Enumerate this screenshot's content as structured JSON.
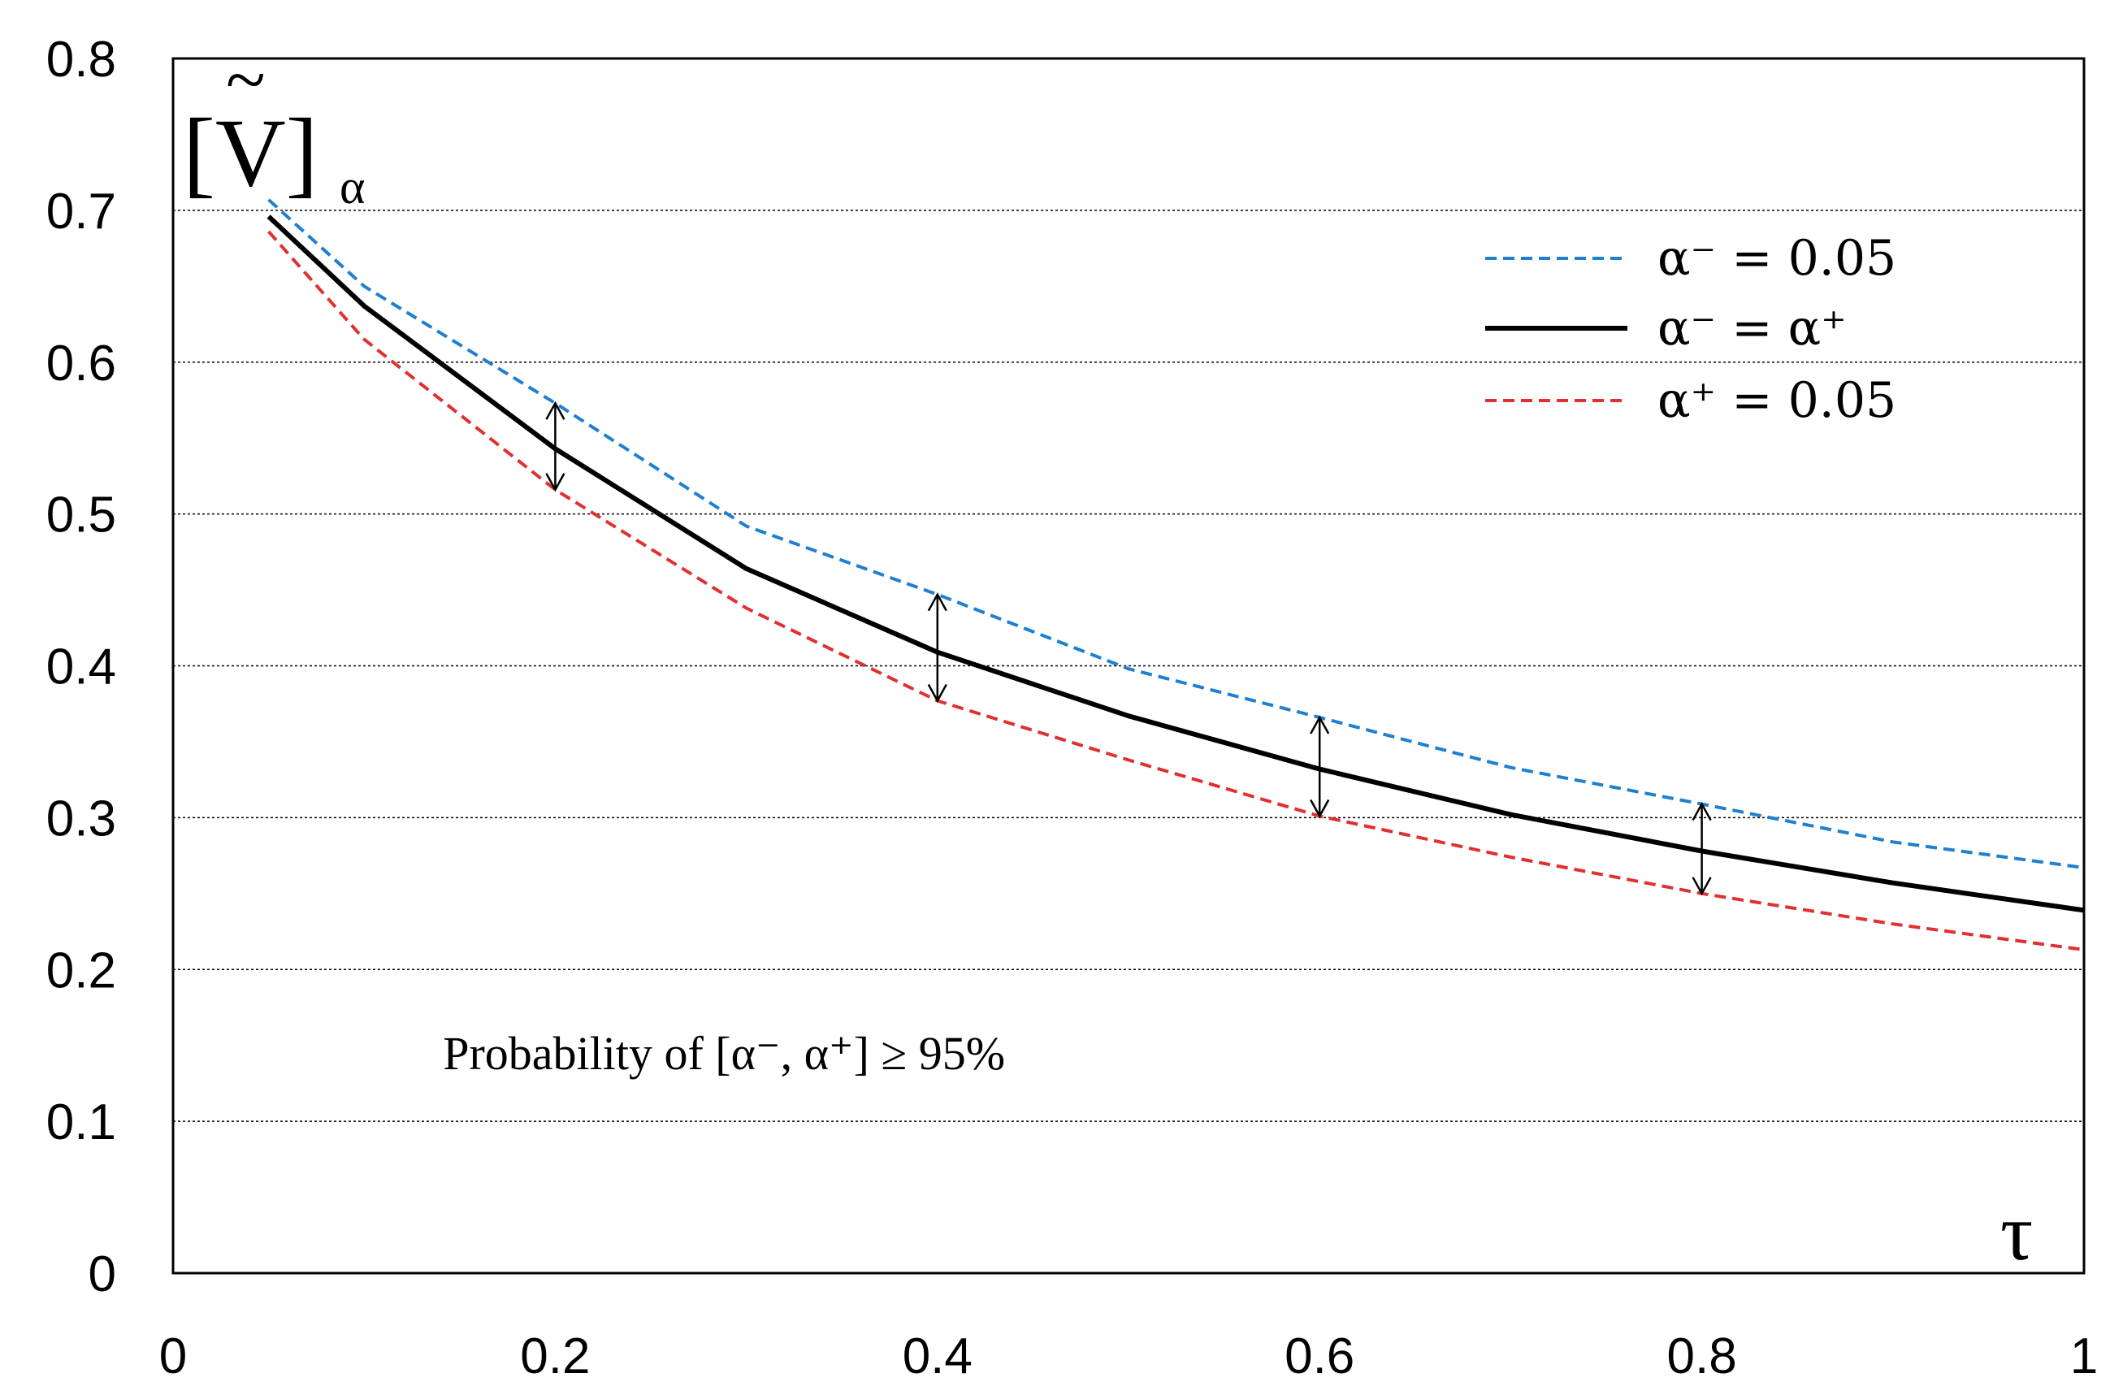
{
  "chart_data": {
    "type": "line",
    "title": "",
    "xlabel": "τ",
    "ylabel": "[Ṽ]α",
    "ylabel_main": "[V]",
    "ylabel_sub": "α",
    "ylabel_accent": "~",
    "xlim": [
      0,
      1
    ],
    "ylim": [
      0,
      0.8
    ],
    "grid": "horizontal-dotted",
    "x_ticks": [
      "0",
      "0.2",
      "0.4",
      "0.6",
      "0.8",
      "1"
    ],
    "x_tick_values": [
      0,
      0.2,
      0.4,
      0.6,
      0.8,
      1.0
    ],
    "y_ticks": [
      "0",
      "0.1",
      "0.2",
      "0.3",
      "0.4",
      "0.5",
      "0.6",
      "0.7",
      "0.8"
    ],
    "y_tick_values": [
      0,
      0.1,
      0.2,
      0.3,
      0.4,
      0.5,
      0.6,
      0.7,
      0.8
    ],
    "legend_position": "top-right",
    "series": [
      {
        "name": "α⁻ = 0.05",
        "color": "#1f7fd0",
        "style": "dashed",
        "x": [
          0.05,
          0.1,
          0.2,
          0.3,
          0.4,
          0.5,
          0.6,
          0.7,
          0.8,
          0.9,
          1.0
        ],
        "y": [
          0.707,
          0.65,
          0.573,
          0.492,
          0.447,
          0.398,
          0.366,
          0.333,
          0.309,
          0.284,
          0.267
        ]
      },
      {
        "name": "α⁻ = α⁺",
        "color": "#000000",
        "style": "solid",
        "x": [
          0.05,
          0.1,
          0.2,
          0.3,
          0.4,
          0.5,
          0.6,
          0.7,
          0.8,
          0.9,
          1.0
        ],
        "y": [
          0.696,
          0.637,
          0.543,
          0.464,
          0.409,
          0.367,
          0.332,
          0.302,
          0.278,
          0.257,
          0.239
        ]
      },
      {
        "name": "α⁺ = 0.05",
        "color": "#e03030",
        "style": "dashed",
        "x": [
          0.05,
          0.1,
          0.2,
          0.3,
          0.4,
          0.5,
          0.6,
          0.7,
          0.8,
          0.9,
          1.0
        ],
        "y": [
          0.686,
          0.615,
          0.516,
          0.438,
          0.377,
          0.338,
          0.301,
          0.274,
          0.25,
          0.23,
          0.213
        ]
      }
    ],
    "arrows": [
      {
        "x": 0.2,
        "y_from": 0.516,
        "y_to": 0.573
      },
      {
        "x": 0.4,
        "y_from": 0.377,
        "y_to": 0.447
      },
      {
        "x": 0.6,
        "y_from": 0.301,
        "y_to": 0.366
      },
      {
        "x": 0.8,
        "y_from": 0.25,
        "y_to": 0.309
      }
    ],
    "annotations": [
      {
        "text": "Probability of [α⁻, α⁺] ≥ 95%",
        "x": 0.1,
        "y": 0.145
      }
    ]
  }
}
